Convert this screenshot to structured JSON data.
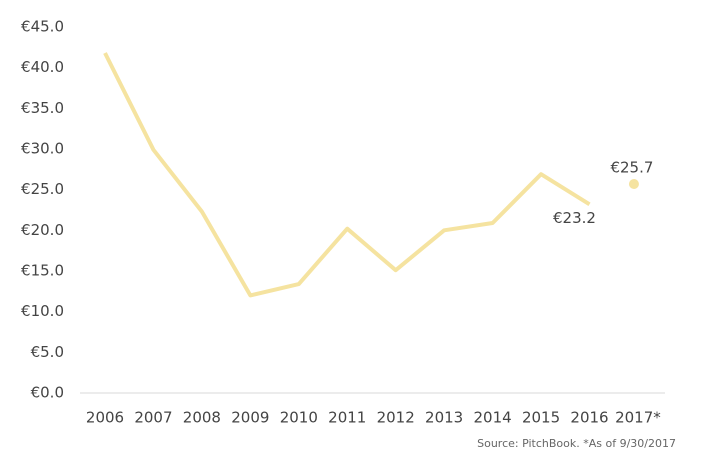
{
  "chart_data": {
    "type": "line",
    "categories": [
      "2006",
      "2007",
      "2008",
      "2009",
      "2010",
      "2011",
      "2012",
      "2013",
      "2014",
      "2015",
      "2016",
      "2017*"
    ],
    "series": [
      {
        "color": "#f5e3a0",
        "values": [
          41.8,
          29.9,
          22.3,
          12.0,
          13.4,
          20.2,
          15.1,
          20.0,
          20.9,
          26.9,
          23.2,
          null
        ],
        "value_labels": [
          null,
          null,
          null,
          null,
          null,
          null,
          null,
          null,
          null,
          null,
          "€23.2",
          null
        ]
      },
      {
        "color": "#f5e3a0",
        "values": [
          null,
          null,
          null,
          null,
          null,
          null,
          null,
          null,
          null,
          null,
          null,
          25.7
        ],
        "value_labels": [
          null,
          null,
          null,
          null,
          null,
          null,
          null,
          null,
          null,
          null,
          null,
          "€25.7"
        ]
      }
    ],
    "ylim": [
      0,
      45
    ],
    "yticks": [
      {
        "value": 0,
        "label": "€0.0"
      },
      {
        "value": 5,
        "label": "€5.0"
      },
      {
        "value": 10,
        "label": "€10.0"
      },
      {
        "value": 15,
        "label": "€15.0"
      },
      {
        "value": 20,
        "label": "€20.0"
      },
      {
        "value": 25,
        "label": "€25.0"
      },
      {
        "value": 30,
        "label": "€30.0"
      },
      {
        "value": 35,
        "label": "€35.0"
      },
      {
        "value": 40,
        "label": "€40.0"
      },
      {
        "value": 45,
        "label": "€45.0"
      }
    ],
    "note": "Source: PitchBook. *As of 9/30/2017"
  }
}
